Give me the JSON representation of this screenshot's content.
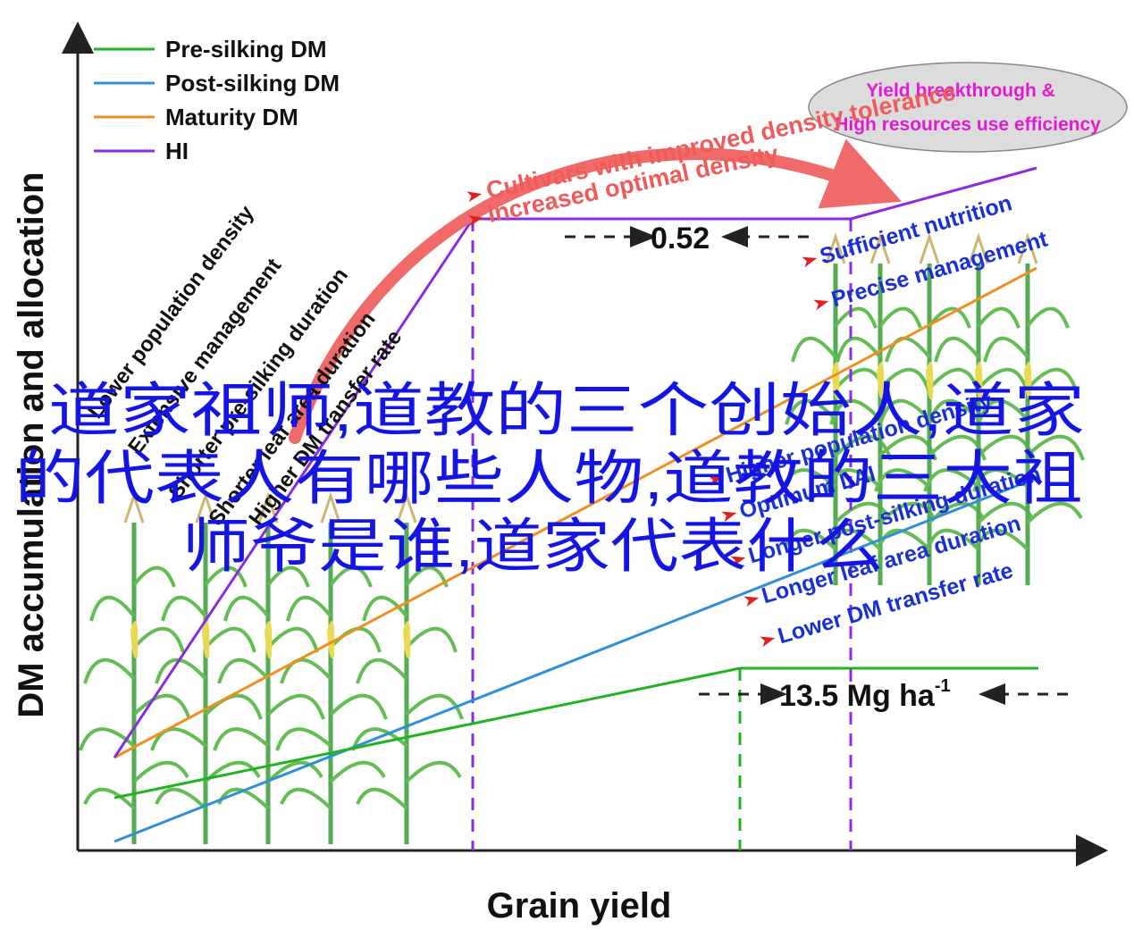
{
  "axes": {
    "x_label": "Grain yield",
    "y_label": "DM accumulation and allocation"
  },
  "legend": [
    {
      "label": "Pre-silking DM",
      "color": "#22b322"
    },
    {
      "label": "Post-silking DM",
      "color": "#2f8fd8"
    },
    {
      "label": "Maturity DM",
      "color": "#ef8f22"
    },
    {
      "label": "HI",
      "color": "#8a2be2"
    }
  ],
  "dimensions": {
    "hi_gap": "0.52",
    "yield_value": "13.5 Mg ha",
    "yield_unit_sup": "-1"
  },
  "left_factors": [
    "Lower population density",
    "Extensive management",
    "Shorter pre-silking duration",
    "Shorter leaf area duration",
    "Higher DM transfer rate"
  ],
  "right_factors_top": [
    "Sufficient nutrition",
    "Precise management"
  ],
  "right_factors_bottom": [
    "Higher population density",
    "Optimum LAI",
    "Longer post-silking duration",
    "Longer leaf area duration",
    "Lower DM transfer rate"
  ],
  "arc_labels": [
    "Cultivars with improved density tolerance",
    "Increased optimal density"
  ],
  "ellipse": {
    "line1": "Yield breakthrough &",
    "line2": "High resources use efficiency"
  },
  "overlay_title": [
    "道家祖师,道教的三个创始人,道家",
    "的代表人有哪些人物,道教的三大祖",
    "师爷是谁,道家代表什么"
  ],
  "colors": {
    "pre_silking": "#22b322",
    "post_silking": "#2f8fd8",
    "maturity": "#ef8f22",
    "hi": "#8a2be2",
    "arrow_red": "#f06a6a",
    "right_text": "#1a2fd6",
    "ellipse_text": "#e01bd2",
    "overlay_text": "#1414e6"
  },
  "icons": [
    "maize-plant-icon",
    "red-arrow-icon",
    "arc-arrow-icon"
  ]
}
